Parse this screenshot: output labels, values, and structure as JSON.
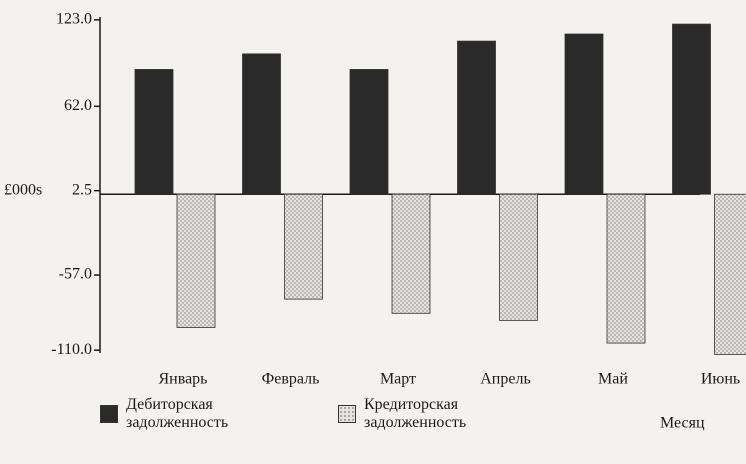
{
  "chart_data": {
    "type": "bar",
    "categories": [
      "Январь",
      "Февраль",
      "Март",
      "Апрель",
      "Май",
      "Июнь"
    ],
    "series": [
      {
        "name": "Дебиторская задолженность",
        "color": "#2a2a2a",
        "values": [
          88,
          99,
          88,
          108,
          113,
          120
        ]
      },
      {
        "name": "Кредиторская задолженность",
        "color": "#9a9a9a",
        "values": [
          -94,
          -74,
          -84,
          -89,
          -105,
          -113
        ]
      }
    ],
    "ylim": [
      -112,
      125
    ],
    "yticks": [
      {
        "value": 123,
        "label": "123.0"
      },
      {
        "value": 62,
        "label": "62.0"
      },
      2.5,
      {
        "value": -57,
        "label": "-57.0"
      },
      {
        "value": -110,
        "label": "-110.0"
      }
    ],
    "y_label": "£000s",
    "x_label": "Месяц"
  }
}
